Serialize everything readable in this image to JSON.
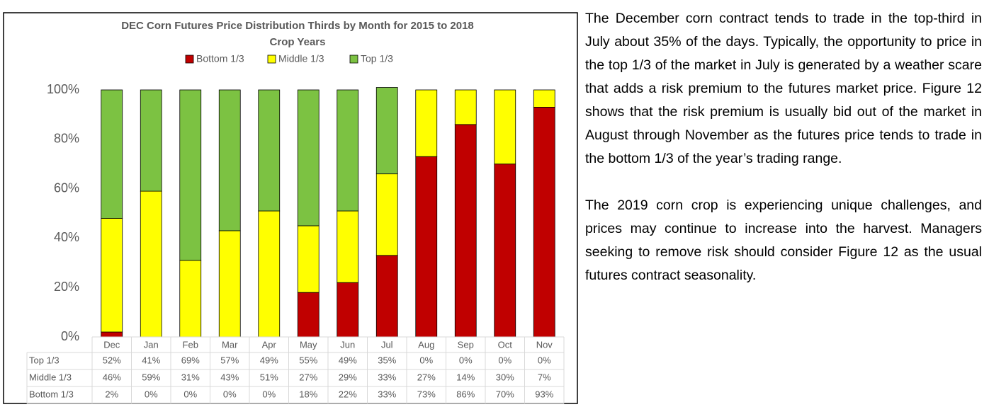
{
  "chart_data": {
    "type": "stacked_bar",
    "title": "DEC Corn Futures Price Distribution Thirds by Month for 2015 to 2018",
    "subtitle": "Crop Years",
    "categories": [
      "Dec",
      "Jan",
      "Feb",
      "Mar",
      "Apr",
      "May",
      "Jun",
      "Jul",
      "Aug",
      "Sep",
      "Oct",
      "Nov"
    ],
    "series": [
      {
        "name": "Bottom 1/3",
        "color": "#c00000",
        "values": [
          2,
          0,
          0,
          0,
          0,
          18,
          22,
          33,
          73,
          86,
          70,
          93
        ],
        "value_labels": [
          "2%",
          "0%",
          "0%",
          "0%",
          "0%",
          "18%",
          "22%",
          "33%",
          "73%",
          "86%",
          "70%",
          "93%"
        ]
      },
      {
        "name": "Middle 1/3",
        "color": "#ffff00",
        "values": [
          46,
          59,
          31,
          43,
          51,
          27,
          29,
          33,
          27,
          14,
          30,
          7
        ],
        "value_labels": [
          "46%",
          "59%",
          "31%",
          "43%",
          "51%",
          "27%",
          "29%",
          "33%",
          "27%",
          "14%",
          "30%",
          "7%"
        ]
      },
      {
        "name": "Top 1/3",
        "color": "#7cc242",
        "values": [
          52,
          41,
          69,
          57,
          49,
          55,
          49,
          35,
          0,
          0,
          0,
          0
        ],
        "value_labels": [
          "52%",
          "41%",
          "69%",
          "57%",
          "49%",
          "55%",
          "49%",
          "35%",
          "0%",
          "0%",
          "0%",
          "0%"
        ]
      }
    ],
    "ylim": [
      0,
      100
    ],
    "yticks": [
      {
        "value": 0,
        "label": "0%"
      },
      {
        "value": 20,
        "label": "20%"
      },
      {
        "value": 40,
        "label": "40%"
      },
      {
        "value": 60,
        "label": "60%"
      },
      {
        "value": 80,
        "label": "80%"
      },
      {
        "value": 100,
        "label": "100%"
      }
    ],
    "grid": false
  },
  "paragraphs": [
    "The December corn contract tends to trade in the top-third in July about 35% of the days. Typically, the opportunity to price in the top 1/3 of the market in July is generated by a weather scare that adds a risk premium to the futures market price. Figure 12 shows that the risk premium is usually bid out of the market in August through November as the futures price tends to trade in the bottom 1/3 of the year’s trading range.",
    "The 2019 corn crop is experiencing unique challenges, and prices may continue to increase into the harvest. Managers seeking to remove risk should consider Figure 12 as the usual futures contract seasonality."
  ]
}
